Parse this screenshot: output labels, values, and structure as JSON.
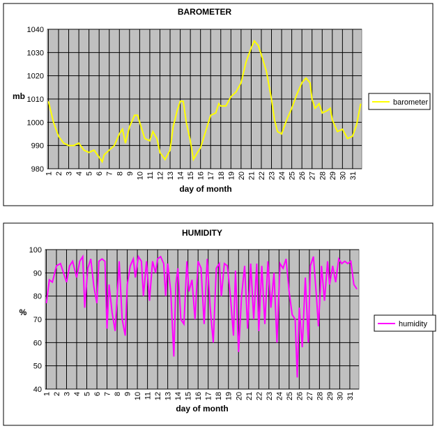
{
  "chart_data": [
    {
      "type": "line",
      "title": "BAROMETER",
      "y_label": "mb",
      "x_label": "day of month",
      "xlim": [
        0.9,
        31.9
      ],
      "xticks": [
        1,
        2,
        3,
        4,
        5,
        6,
        7,
        8,
        9,
        10,
        11,
        12,
        13,
        14,
        15,
        16,
        17,
        18,
        19,
        20,
        21,
        22,
        23,
        24,
        25,
        26,
        27,
        28,
        29,
        30,
        31
      ],
      "ylim": [
        980,
        1040
      ],
      "yticks": [
        980,
        990,
        1000,
        1010,
        1020,
        1030,
        1040
      ],
      "grid": true,
      "legend": "right",
      "x": [
        1,
        1.5,
        2,
        2.5,
        3,
        3.5,
        4,
        4.5,
        5,
        5.5,
        6,
        6.3,
        6.5,
        7,
        7.5,
        8,
        8.3,
        8.6,
        9,
        9.5,
        9.8,
        10,
        10.5,
        11,
        11.3,
        11.7,
        12,
        12.5,
        13,
        13.3,
        13.7,
        14,
        14.3,
        14.6,
        15,
        15.3,
        15.7,
        16,
        16.5,
        17,
        17.5,
        17.8,
        18,
        18.5,
        19,
        19.5,
        20,
        20.5,
        21,
        21.3,
        21.7,
        22,
        22.5,
        23,
        23.3,
        23.6,
        24,
        24.5,
        25,
        25.5,
        26,
        26.4,
        26.8,
        27,
        27.3,
        27.7,
        28,
        28.5,
        28.8,
        29,
        29.5,
        30,
        30.5,
        31,
        31.4,
        31.8
      ],
      "series": [
        {
          "name": "barometer",
          "color": "#ffff00",
          "values": [
            1009,
            1000,
            994,
            991,
            990,
            990,
            991,
            988,
            987,
            988,
            985,
            983,
            986,
            988,
            990,
            995,
            997,
            991,
            998,
            1003,
            1003,
            1000,
            993,
            992,
            996,
            993,
            987,
            984,
            988,
            998,
            1005,
            1009,
            1009,
            1000,
            992,
            984,
            987,
            989,
            996,
            1003,
            1004,
            1008,
            1007,
            1007,
            1011,
            1013,
            1017,
            1026,
            1032,
            1035,
            1033,
            1029,
            1022,
            1010,
            1001,
            996,
            995,
            1001,
            1006,
            1012,
            1017,
            1019,
            1017,
            1010,
            1006,
            1008,
            1004,
            1005,
            1006,
            1001,
            996,
            997,
            993,
            994,
            999,
            1008
          ]
        }
      ]
    },
    {
      "type": "line",
      "title": "HUMIDITY",
      "y_label": "%",
      "x_label": "day of month",
      "xlim": [
        0.9,
        31.9
      ],
      "xticks": [
        1,
        2,
        3,
        4,
        5,
        6,
        7,
        8,
        9,
        10,
        11,
        12,
        13,
        14,
        15,
        16,
        17,
        18,
        19,
        20,
        21,
        22,
        23,
        24,
        25,
        26,
        27,
        28,
        29,
        30,
        31
      ],
      "ylim": [
        40,
        100
      ],
      "yticks": [
        40,
        50,
        60,
        70,
        80,
        90,
        100
      ],
      "grid": true,
      "legend": "right",
      "x": [
        1,
        1.3,
        1.6,
        2,
        2.4,
        2.7,
        3,
        3.3,
        3.6,
        4,
        4.3,
        4.6,
        4.8,
        5.1,
        5.4,
        5.7,
        6,
        6.2,
        6.5,
        6.8,
        7,
        7.2,
        7.5,
        7.8,
        8,
        8.2,
        8.5,
        8.8,
        9,
        9.3,
        9.6,
        9.8,
        10.1,
        10.4,
        10.6,
        10.9,
        11.2,
        11.5,
        11.8,
        12,
        12.3,
        12.6,
        12.8,
        13,
        13.3,
        13.6,
        13.8,
        14,
        14.3,
        14.6,
        14.9,
        15.1,
        15.4,
        15.7,
        16,
        16.3,
        16.6,
        16.9,
        17.2,
        17.5,
        17.8,
        18.1,
        18.3,
        18.6,
        18.9,
        19.2,
        19.5,
        19.7,
        20,
        20.3,
        20.6,
        20.9,
        21.2,
        21.5,
        21.8,
        22,
        22.3,
        22.6,
        22.9,
        23.2,
        23.5,
        23.8,
        24.1,
        24.4,
        24.7,
        25,
        25.3,
        25.6,
        25.8,
        26,
        26.3,
        26.6,
        26.9,
        27.1,
        27.4,
        27.7,
        27.9,
        28.2,
        28.5,
        28.8,
        29,
        29.3,
        29.6,
        29.9,
        30.2,
        30.5,
        30.8,
        31.1,
        31.4,
        31.7
      ],
      "series": [
        {
          "name": "humidity",
          "color": "#ff00ff",
          "values": [
            77,
            87,
            86,
            93,
            94,
            90,
            86,
            93,
            95,
            88,
            95,
            97,
            75,
            92,
            96,
            84,
            77,
            95,
            96,
            95,
            66,
            85,
            73,
            65,
            80,
            95,
            70,
            63,
            85,
            93,
            96,
            88,
            97,
            95,
            80,
            95,
            78,
            95,
            90,
            96,
            97,
            94,
            80,
            94,
            82,
            54,
            85,
            92,
            70,
            68,
            95,
            82,
            87,
            70,
            95,
            92,
            68,
            96,
            75,
            60,
            92,
            94,
            80,
            94,
            93,
            80,
            63,
            91,
            56,
            80,
            93,
            66,
            94,
            70,
            94,
            65,
            93,
            68,
            95,
            75,
            90,
            60,
            94,
            92,
            96,
            82,
            72,
            70,
            45,
            75,
            58,
            88,
            60,
            93,
            97,
            80,
            67,
            93,
            78,
            95,
            85,
            93,
            86,
            96,
            94,
            95,
            94,
            95,
            85,
            83
          ]
        }
      ]
    }
  ]
}
